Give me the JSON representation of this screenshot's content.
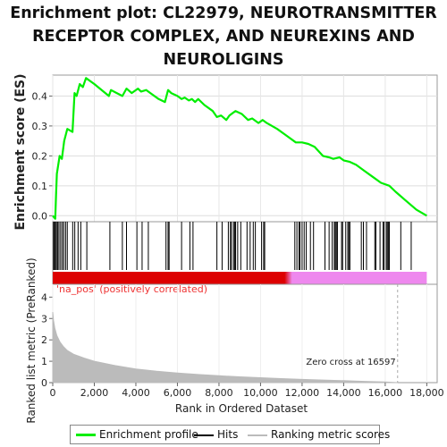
{
  "title": "Enrichment plot: CL22979, NEUROTRANSMITTER RECEPTOR COMPLEX, AND NEUREXINS AND NEUROLIGINS",
  "colors": {
    "enrichment": "#00ee00",
    "hits": "#000000",
    "metric": "#bbbbbb",
    "positive": "#dd0000",
    "negative": "#ee88ee",
    "positive_label": "#ee3333"
  },
  "legend": {
    "enrichment_profile": "Enrichment profile",
    "hits": "Hits",
    "ranking_metric_scores": "Ranking metric scores"
  },
  "annotations": {
    "positive_label": "'na_pos' (positively correlated)",
    "zero_cross": "Zero cross at 16597"
  },
  "chart_data": {
    "type": "line",
    "title": "Enrichment plot: CL22979, NEUROTRANSMITTER RECEPTOR COMPLEX, AND NEUREXINS AND NEUROLIGINS",
    "xlabel": "Rank in Ordered Dataset",
    "xlim": [
      0,
      18500
    ],
    "x_ticks": [
      "0",
      "2,000",
      "4,000",
      "6,000",
      "8,000",
      "10,000",
      "12,000",
      "14,000",
      "16,000",
      "18,000"
    ],
    "x_tick_values": [
      0,
      2000,
      4000,
      6000,
      8000,
      10000,
      12000,
      14000,
      16000,
      18000
    ],
    "zero_cross": 16597,
    "enrichment": {
      "ylabel": "Enrichment score (ES)",
      "ylim": [
        -0.02,
        0.47
      ],
      "y_ticks": [
        "0.0",
        "0.1",
        "0.2",
        "0.3",
        "0.4"
      ],
      "y_tick_values": [
        0.0,
        0.1,
        0.2,
        0.3,
        0.4
      ],
      "series": [
        {
          "name": "Enrichment profile",
          "x": [
            0,
            120,
            160,
            200,
            330,
            440,
            550,
            700,
            950,
            1050,
            1150,
            1300,
            1450,
            1600,
            2000,
            2700,
            2800,
            3350,
            3550,
            3800,
            4100,
            4250,
            4500,
            4700,
            5100,
            5400,
            5550,
            5700,
            6000,
            6200,
            6350,
            6550,
            6700,
            6850,
            7000,
            7300,
            7700,
            7900,
            8100,
            8350,
            8500,
            8700,
            8800,
            9100,
            9400,
            9600,
            9900,
            10100,
            10300,
            10800,
            11200,
            11700,
            12000,
            12300,
            12600,
            13000,
            13300,
            13500,
            13800,
            14000,
            14300,
            14600,
            15000,
            15400,
            15800,
            16200,
            16500,
            17000,
            17500,
            18000
          ],
          "y": [
            0.0,
            -0.01,
            0.07,
            0.14,
            0.2,
            0.19,
            0.25,
            0.29,
            0.28,
            0.41,
            0.4,
            0.44,
            0.43,
            0.46,
            0.44,
            0.4,
            0.42,
            0.4,
            0.425,
            0.41,
            0.425,
            0.415,
            0.42,
            0.41,
            0.39,
            0.38,
            0.42,
            0.41,
            0.4,
            0.39,
            0.395,
            0.385,
            0.39,
            0.38,
            0.39,
            0.37,
            0.35,
            0.33,
            0.335,
            0.32,
            0.335,
            0.345,
            0.35,
            0.34,
            0.32,
            0.325,
            0.31,
            0.32,
            0.31,
            0.29,
            0.27,
            0.245,
            0.245,
            0.24,
            0.23,
            0.2,
            0.195,
            0.19,
            0.195,
            0.185,
            0.18,
            0.17,
            0.15,
            0.13,
            0.11,
            0.1,
            0.08,
            0.05,
            0.02,
            0.0
          ]
        }
      ]
    },
    "hits": [
      40,
      80,
      130,
      180,
      240,
      300,
      380,
      460,
      530,
      620,
      700,
      960,
      1060,
      1220,
      1350,
      1640,
      2750,
      3350,
      3550,
      4050,
      4300,
      4600,
      5450,
      5550,
      5600,
      6200,
      6600,
      6750,
      7900,
      8150,
      8450,
      8550,
      8600,
      8700,
      8750,
      8800,
      8900,
      9050,
      9350,
      9500,
      9650,
      9750,
      10050,
      10150,
      10200,
      11650,
      11750,
      11850,
      11900,
      12000,
      12100,
      12200,
      12400,
      12550,
      13100,
      13300,
      13450,
      13550,
      13600,
      13650,
      13700,
      13900,
      13950,
      14100,
      14200,
      14250,
      14300,
      14850,
      14950,
      15100,
      15500,
      15550,
      15750,
      15900,
      15950,
      16050,
      16100,
      16150,
      16200,
      16750,
      17250
    ],
    "ranking_metric": {
      "ylabel": "Ranked list metric (PreRanked)",
      "ylim": [
        0,
        4.6
      ],
      "y_ticks": [
        "0",
        "1",
        "2",
        "3",
        "4"
      ],
      "y_tick_values": [
        0,
        1,
        2,
        3,
        4
      ],
      "x": [
        0,
        40,
        100,
        200,
        350,
        500,
        700,
        1000,
        1500,
        2000,
        3000,
        4000,
        5000,
        6000,
        7000,
        8000,
        9000,
        10000,
        11000,
        12000,
        13000,
        14000,
        15000,
        16000,
        16597
      ],
      "y": [
        3.3,
        2.9,
        2.55,
        2.2,
        1.9,
        1.7,
        1.5,
        1.33,
        1.15,
        1.0,
        0.8,
        0.64,
        0.53,
        0.45,
        0.38,
        0.32,
        0.27,
        0.23,
        0.19,
        0.15,
        0.12,
        0.09,
        0.06,
        0.03,
        0.0
      ]
    }
  }
}
